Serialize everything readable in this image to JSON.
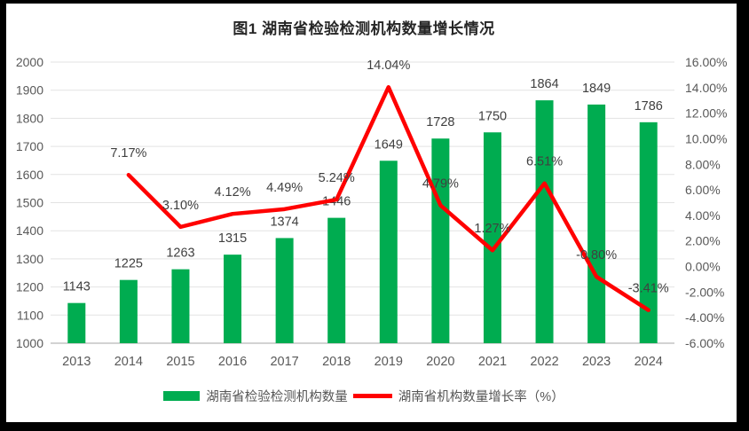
{
  "page": {
    "frame_color": "#000000",
    "canvas_color": "#FFFFFF"
  },
  "chart_data": {
    "type": "bar+line",
    "title": "图1 湖南省检验检测机构数量增长情况",
    "categories": [
      "2013",
      "2014",
      "2015",
      "2016",
      "2017",
      "2018",
      "2019",
      "2020",
      "2021",
      "2022",
      "2023",
      "2024"
    ],
    "series": [
      {
        "name": "湖南省检验检测机构数量",
        "type": "bar",
        "axis": "left",
        "color": "#00AC50",
        "values": [
          1143,
          1225,
          1263,
          1315,
          1374,
          1446,
          1649,
          1728,
          1750,
          1864,
          1849,
          1786
        ],
        "labels": [
          "1143",
          "1225",
          "1263",
          "1315",
          "1374",
          "1446",
          "1649",
          "1728",
          "1750",
          "1864",
          "1849",
          "1786"
        ]
      },
      {
        "name": "湖南省机构数量增长率（%）",
        "type": "line",
        "axis": "right",
        "color": "#FF0000",
        "values": [
          null,
          7.17,
          3.1,
          4.12,
          4.49,
          5.24,
          14.04,
          4.79,
          1.27,
          6.51,
          -0.8,
          -3.41
        ],
        "labels": [
          null,
          "7.17%",
          "3.10%",
          "4.12%",
          "4.49%",
          "5.24%",
          "14.04%",
          "4.79%",
          "1.27%",
          "6.51%",
          "-0.80%",
          "-3.41%"
        ]
      }
    ],
    "left_axis": {
      "min": 1000,
      "max": 2000,
      "step": 100
    },
    "right_axis": {
      "min": -6,
      "max": 16,
      "step": 2,
      "suffix": "%",
      "decimals": 2
    },
    "grid": true,
    "legend_position": "bottom",
    "tick_color": "#595959",
    "label_color": "#404040",
    "gridline_color": "#E3E3E3",
    "axisline_color": "#D2D2D2"
  }
}
